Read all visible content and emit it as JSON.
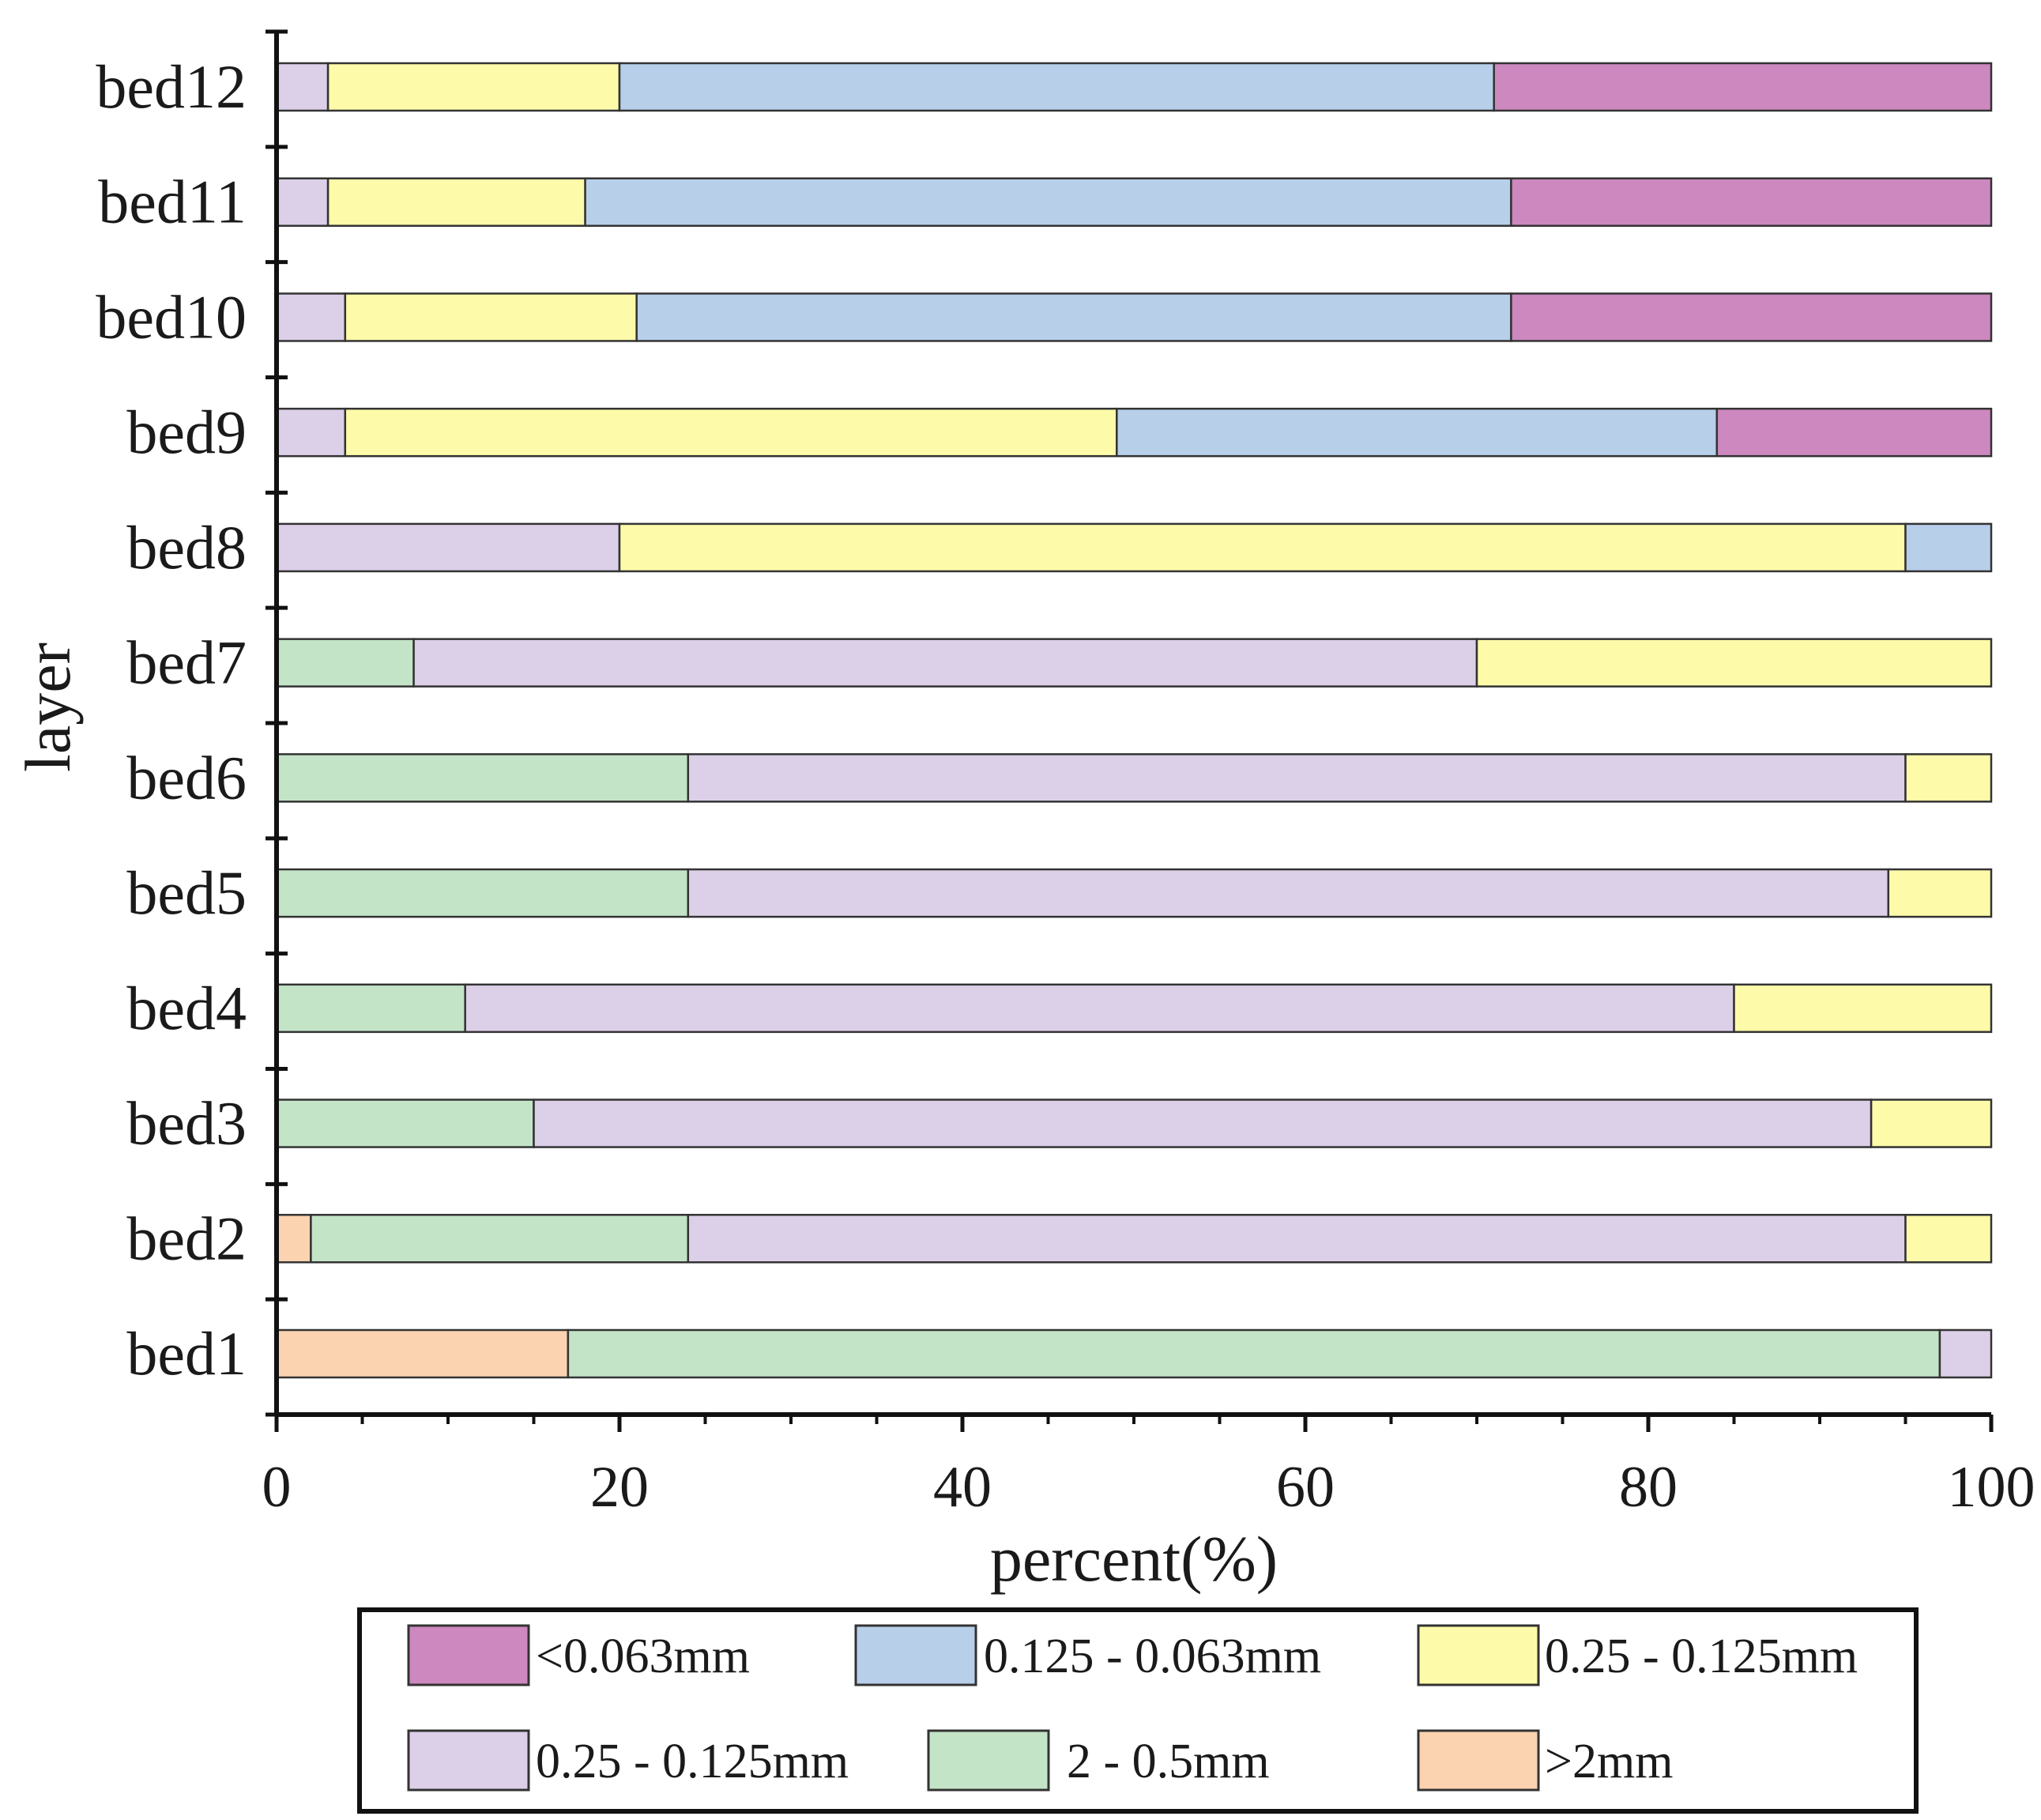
{
  "chart_data": {
    "type": "bar",
    "orientation": "horizontal",
    "stacked": true,
    "xlabel": "percent(%)",
    "ylabel": "layer",
    "xlim": [
      0,
      100
    ],
    "xticks": [
      0,
      20,
      40,
      60,
      80,
      100
    ],
    "categories": [
      "bed1",
      "bed2",
      "bed3",
      "bed4",
      "bed5",
      "bed6",
      "bed7",
      "bed8",
      "bed9",
      "bed10",
      "bed11",
      "bed12"
    ],
    "series": [
      {
        "name": ">2mm",
        "color": "#fbd3b0",
        "values": [
          17,
          2,
          0,
          0,
          0,
          0,
          0,
          0,
          0,
          0,
          0,
          0
        ]
      },
      {
        "name": "2 - 0.5mm",
        "color": "#c4e4c8",
        "values": [
          80,
          22,
          15,
          11,
          24,
          24,
          8,
          0,
          0,
          0,
          0,
          0
        ]
      },
      {
        "name": "0.25 - 0.125mm",
        "color": "#dccfe8",
        "values": [
          3,
          71,
          78,
          74,
          70,
          71,
          62,
          20,
          4,
          4,
          3,
          3
        ]
      },
      {
        "name": "0.25 - 0.125mm",
        "color": "#fdfaa9",
        "values": [
          0,
          5,
          7,
          15,
          6,
          5,
          30,
          75,
          45,
          17,
          15,
          17
        ]
      },
      {
        "name": "0.125 - 0.063mm",
        "color": "#b8cfea",
        "values": [
          0,
          0,
          0,
          0,
          0,
          0,
          0,
          5,
          35,
          51,
          54,
          51
        ]
      },
      {
        "name": "<0.063mm",
        "color": "#cc88bf",
        "values": [
          0,
          0,
          0,
          0,
          0,
          0,
          0,
          0,
          16,
          28,
          28,
          29
        ]
      }
    ],
    "legend": {
      "placement": "bottom",
      "order": [
        5,
        4,
        3,
        2,
        1,
        0
      ]
    }
  }
}
